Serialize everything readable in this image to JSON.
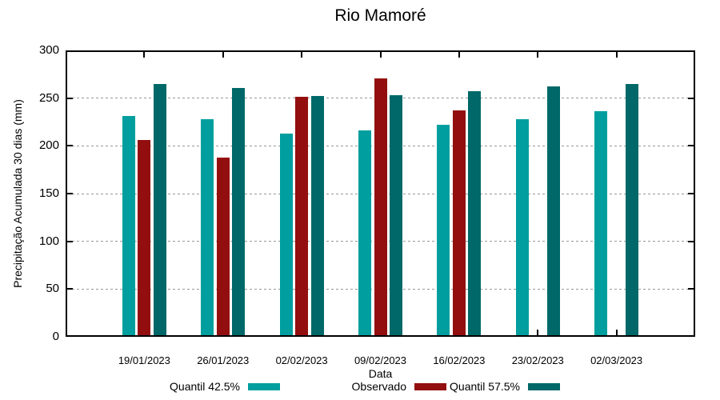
{
  "chart_data": {
    "type": "bar",
    "title": "Rio Mamoré",
    "xlabel": "Data",
    "ylabel": "Precipitação Acumulada 30 dias (mm)",
    "categories": [
      "19/01/2023",
      "26/01/2023",
      "02/02/2023",
      "09/02/2023",
      "16/02/2023",
      "23/02/2023",
      "02/03/2023"
    ],
    "series": [
      {
        "name": "Quantil 42.5%",
        "color": "#009E9E",
        "values": [
          231,
          228,
          213,
          216,
          222,
          228,
          236
        ]
      },
      {
        "name": "Observado",
        "color": "#930F0F",
        "values": [
          206,
          188,
          251,
          271,
          237,
          null,
          null
        ]
      },
      {
        "name": "Quantil 57.5%",
        "color": "#006868",
        "values": [
          265,
          261,
          252,
          253,
          257,
          262,
          265
        ]
      }
    ],
    "ylim": [
      0,
      300
    ],
    "yticks": [
      0,
      50,
      100,
      150,
      200,
      250,
      300
    ],
    "grid": "dotted horizontal gridlines at y ticks",
    "legend_position": "bottom"
  },
  "colors": {
    "background": "#ffffff",
    "axis": "#000000",
    "grid": "#999999",
    "text": "#000000"
  }
}
